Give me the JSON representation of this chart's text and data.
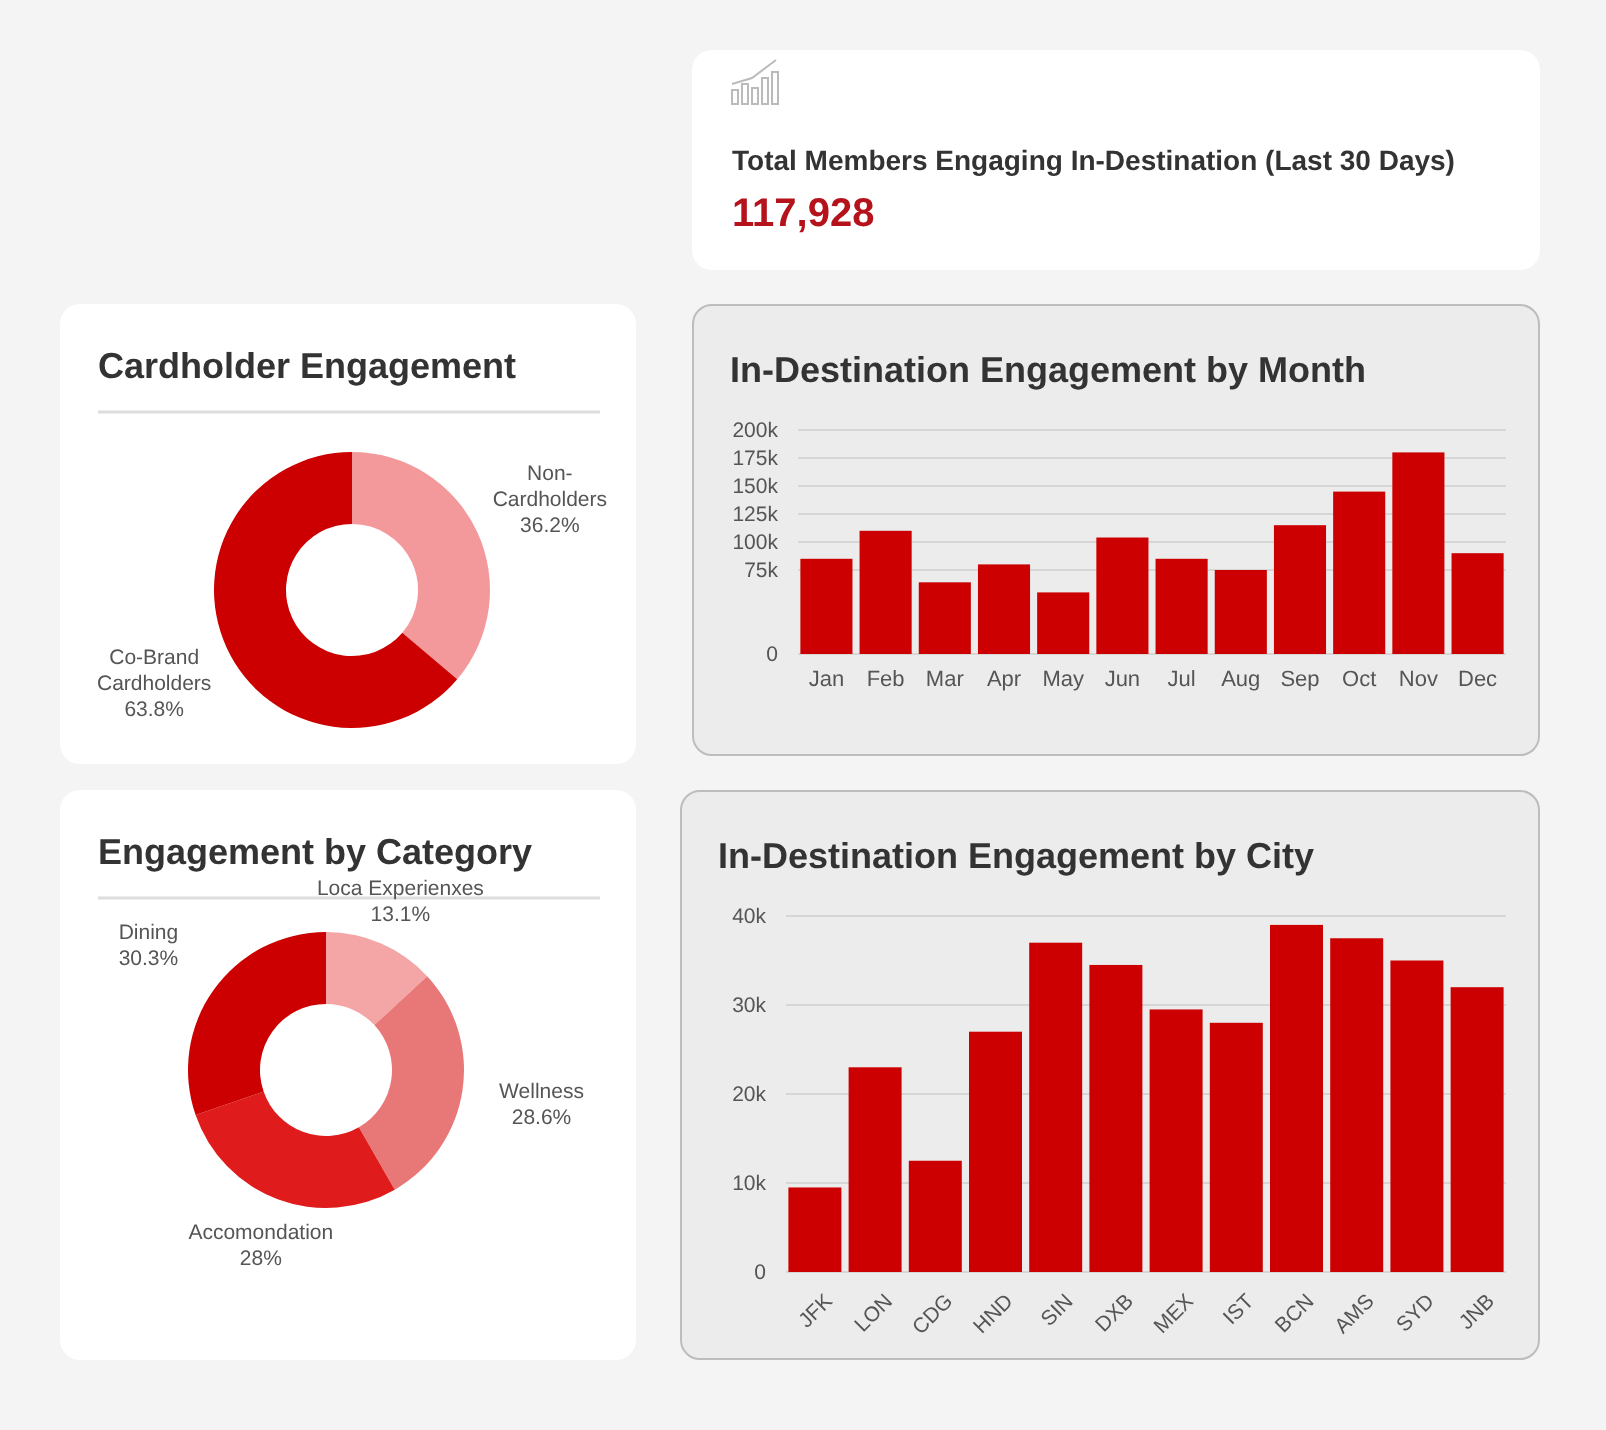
{
  "chart_data": [
    {
      "type": "other",
      "title": "Total Members Engaging In-Destination (Last 30 Days)",
      "annotations": [
        "117,928"
      ]
    },
    {
      "type": "donut",
      "title": "Cardholder Engagement",
      "categories": [
        "Non-Cardholders",
        "Co-Brand Cardholders"
      ],
      "values": [
        36.2,
        63.8
      ],
      "colors": [
        "#f4999b",
        "#cc0000"
      ],
      "value_labels": [
        "36.2%",
        "63.8%"
      ]
    },
    {
      "type": "bar",
      "title": "In-Destination Engagement by Month",
      "categories": [
        "Jan",
        "Feb",
        "Mar",
        "Apr",
        "May",
        "Jun",
        "Jul",
        "Aug",
        "Sep",
        "Oct",
        "Nov",
        "Dec"
      ],
      "values": [
        85000,
        110000,
        64000,
        80000,
        55000,
        104000,
        85000,
        75000,
        115000,
        145000,
        180000,
        90000
      ],
      "color": "#cc0000",
      "ylim": [
        0,
        200000
      ],
      "yticks": [
        0,
        {
          "value": 75000,
          "label": "75k"
        },
        {
          "value": 100000,
          "label": "100k"
        },
        {
          "value": 125000,
          "label": "125k"
        },
        {
          "value": 150000,
          "label": "150k"
        },
        {
          "value": 175000,
          "label": "175k"
        },
        {
          "value": 200000,
          "label": "200k"
        }
      ],
      "grid": "y"
    },
    {
      "type": "donut",
      "title": "Engagement by Category",
      "categories": [
        "Loca Experienxes",
        "Wellness",
        "Accomondation",
        "Dining"
      ],
      "values": [
        13.1,
        28.6,
        28,
        30.3
      ],
      "colors": [
        "#f4a5a5",
        "#e87878",
        "#e01b1b",
        "#cc0000"
      ],
      "value_labels": [
        "13.1%",
        "28.6%",
        "28%",
        "30.3%"
      ]
    },
    {
      "type": "bar",
      "title": "In-Destination Engagement by City",
      "categories": [
        "JFK",
        "LON",
        "CDG",
        "HND",
        "SIN",
        "DXB",
        "MEX",
        "IST",
        "BCN",
        "AMS",
        "SYD",
        "JNB"
      ],
      "values": [
        9500,
        23000,
        12500,
        27000,
        37000,
        34500,
        29500,
        28000,
        39000,
        37500,
        35000,
        32000
      ],
      "color": "#cc0000",
      "ylim": [
        0,
        40000
      ],
      "yticks": [
        0,
        {
          "value": 10000,
          "label": "10k"
        },
        {
          "value": 20000,
          "label": "20k"
        },
        {
          "value": 30000,
          "label": "30k"
        },
        {
          "value": 40000,
          "label": "40k"
        }
      ],
      "grid": "y"
    }
  ]
}
